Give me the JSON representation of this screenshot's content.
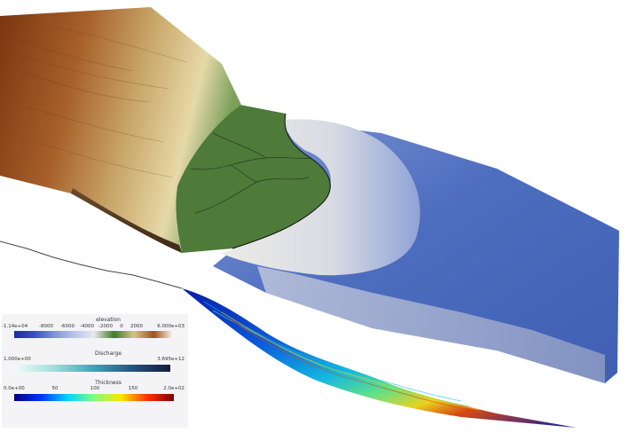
{
  "legend": {
    "elevation": {
      "title": "elevation",
      "ticks": [
        "-1.14e+04",
        "-8000",
        "-6000",
        "-4000",
        "-2000",
        "0",
        "2000",
        "6.000e+03"
      ],
      "colors": [
        "#1f2a9c",
        "#3a4fbf",
        "#7f93d8",
        "#b9c3e8",
        "#e8e8ef",
        "#3f7a2a",
        "#d7c488",
        "#a0521c",
        "#ffffff"
      ]
    },
    "discharge": {
      "title": "Discharge",
      "ticks": [
        "1.000e+00",
        "3.695e+12"
      ],
      "colors": [
        "#f2fbfb",
        "#9fe0dc",
        "#3fa7b9",
        "#24557f",
        "#141a3c"
      ]
    },
    "thickness": {
      "title": "Thickness",
      "ticks": [
        "0.0e+00",
        "50",
        "100",
        "150",
        "2.0e+02"
      ],
      "colors": [
        "#00007f",
        "#0032ff",
        "#00d4ff",
        "#7dff7a",
        "#ffe600",
        "#ff3000",
        "#7f0000"
      ]
    }
  },
  "scene": {
    "land_colors": [
      "#7a3510",
      "#a7602a",
      "#c9a76a",
      "#e2d4a0",
      "#4e7a3a"
    ],
    "shelf_color": "#e4e2dc",
    "ocean_color": "#4b6bbd",
    "strata_colors": [
      "#0b1aa8",
      "#0a5bdc",
      "#12b6e0",
      "#5fe08a",
      "#e8d320",
      "#d94a12"
    ]
  }
}
